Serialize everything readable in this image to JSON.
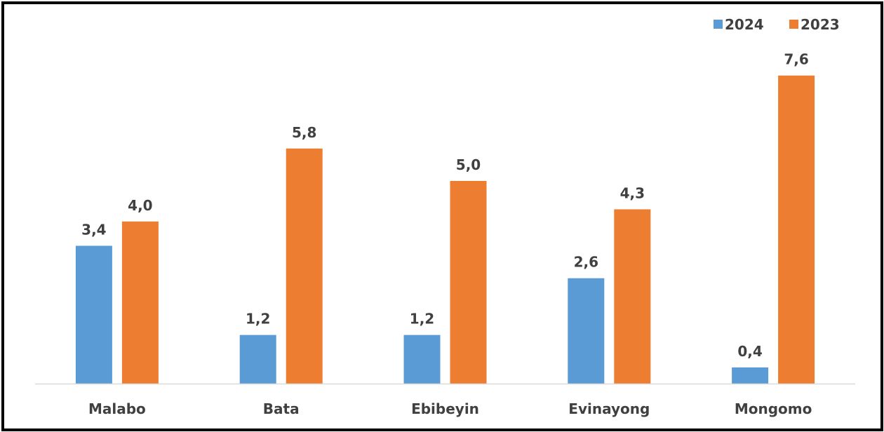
{
  "chart_data": {
    "type": "bar",
    "categories": [
      "Malabo",
      "Bata",
      "Ebibeyin",
      "Evinayong",
      "Mongomo"
    ],
    "series": [
      {
        "name": "2024",
        "color": "#5B9BD5",
        "values": [
          3.4,
          1.2,
          1.2,
          2.6,
          0.4
        ],
        "labels": [
          "3,4",
          "1,2",
          "1,2",
          "2,6",
          "0,4"
        ]
      },
      {
        "name": "2023",
        "color": "#ED7D31",
        "values": [
          4.0,
          5.8,
          5.0,
          4.3,
          7.6
        ],
        "labels": [
          "4,0",
          "5,8",
          "5,0",
          "4,3",
          "7,6"
        ]
      }
    ],
    "ylim": [
      0,
      8
    ],
    "grid": false,
    "legend_position": "top-right",
    "axis_color": "#D9D9D9",
    "label_color": "#404040"
  }
}
